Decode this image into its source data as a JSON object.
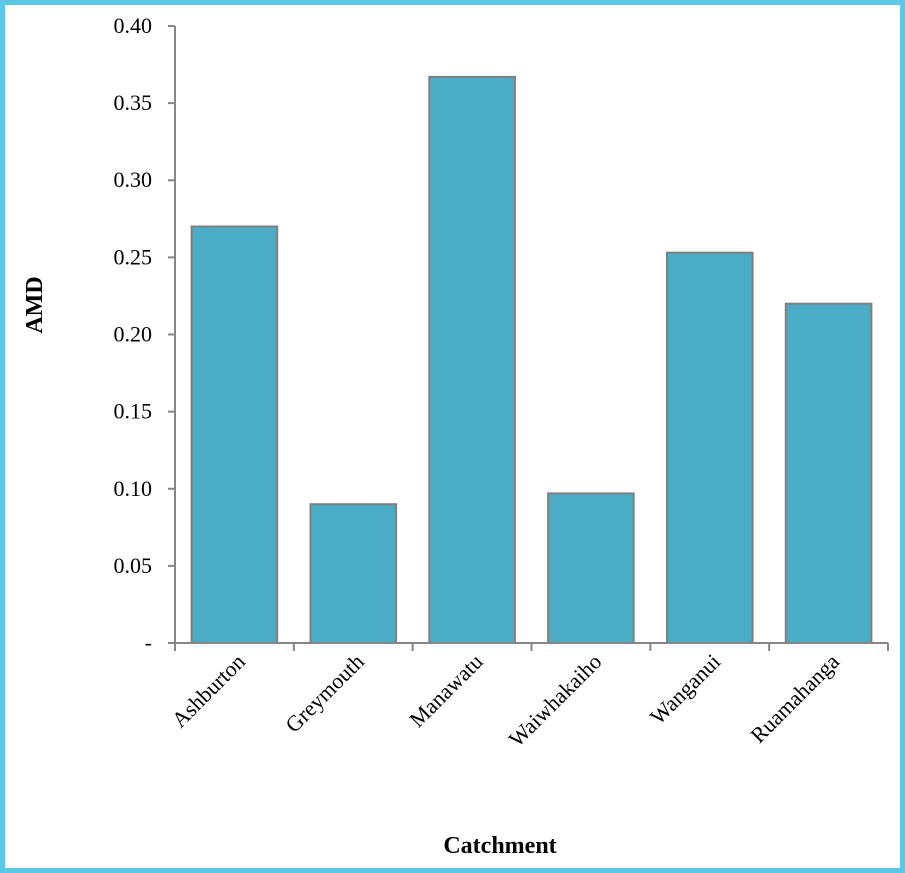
{
  "colors": {
    "frame": "#5bc8e8",
    "bar_fill": "#4bacc6",
    "bar_stroke": "#7f7f7f",
    "axis": "#868686"
  },
  "chart_data": {
    "type": "bar",
    "categories": [
      "Ashburton",
      "Greymouth",
      "Manawatu",
      "Waiwhakaiho",
      "Wanganui",
      "Ruamahanga"
    ],
    "series": [
      {
        "values": [
          0.27,
          0.09,
          0.367,
          0.097,
          0.253,
          0.22
        ]
      }
    ],
    "xlabel": "Catchment",
    "ylabel": "AMD",
    "ylim": [
      0,
      0.4
    ],
    "ytick_labels": [
      "-",
      "0.05",
      "0.10",
      "0.15",
      "0.20",
      "0.25",
      "0.30",
      "0.35",
      "0.40"
    ],
    "grid": false,
    "legend": "none"
  }
}
